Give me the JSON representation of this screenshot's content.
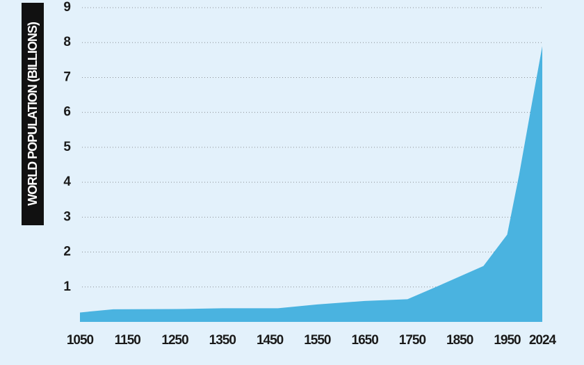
{
  "chart_data": {
    "type": "area",
    "y_label": "WORLD POPULATION (BILLIONS)",
    "x": [
      1050,
      1120,
      1270,
      1350,
      1467,
      1550,
      1650,
      1740,
      1800,
      1900,
      1950,
      1975,
      2000,
      2024
    ],
    "values": [
      0.27,
      0.36,
      0.37,
      0.39,
      0.39,
      0.5,
      0.6,
      0.65,
      1.0,
      1.6,
      2.5,
      4.2,
      6.1,
      7.9
    ],
    "color": "#4ab3e0",
    "xlim": [
      1050,
      2024
    ],
    "xticks": [
      1050,
      1150,
      1250,
      1350,
      1450,
      1550,
      1650,
      1750,
      1850,
      1950,
      2024
    ],
    "ylim": [
      0,
      9
    ],
    "yticks": [
      1,
      2,
      3,
      4,
      5,
      6,
      7,
      8,
      9
    ],
    "grid": true
  }
}
